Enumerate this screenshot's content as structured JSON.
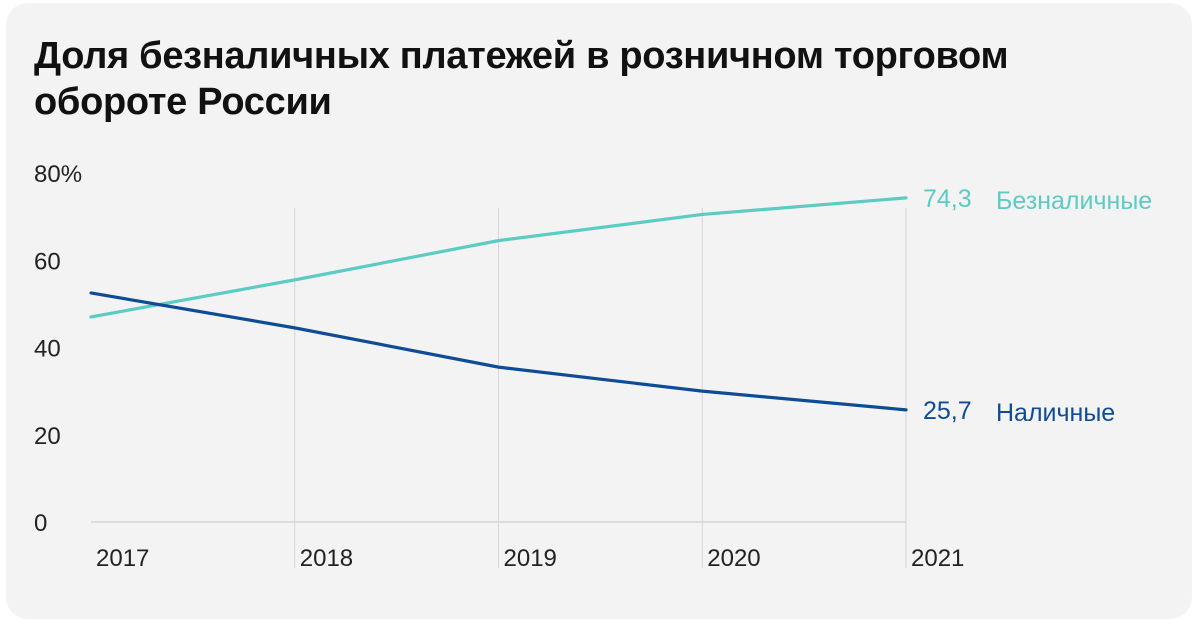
{
  "chart_data": {
    "type": "line",
    "title": "Доля безналичных платежей в розничном торговом обороте России",
    "x": [
      "2017",
      "2018",
      "2019",
      "2020",
      "2021"
    ],
    "y_ticks": [
      "0",
      "20",
      "40",
      "60",
      "80%"
    ],
    "ylim": [
      0,
      80
    ],
    "grid": "vertical",
    "series": [
      {
        "name": "Безналичные",
        "values": [
          47,
          55.5,
          64.5,
          70.5,
          74.3
        ],
        "end_label": "74,3",
        "color": "#5ccbc2"
      },
      {
        "name": "Наличные",
        "values": [
          52.5,
          44.5,
          35.5,
          30,
          25.7
        ],
        "end_label": "25,7",
        "color": "#0f4c95"
      }
    ]
  },
  "colors": {
    "background": "#f3f3f3",
    "grid": "#d6d6d6",
    "text": "#222222"
  }
}
